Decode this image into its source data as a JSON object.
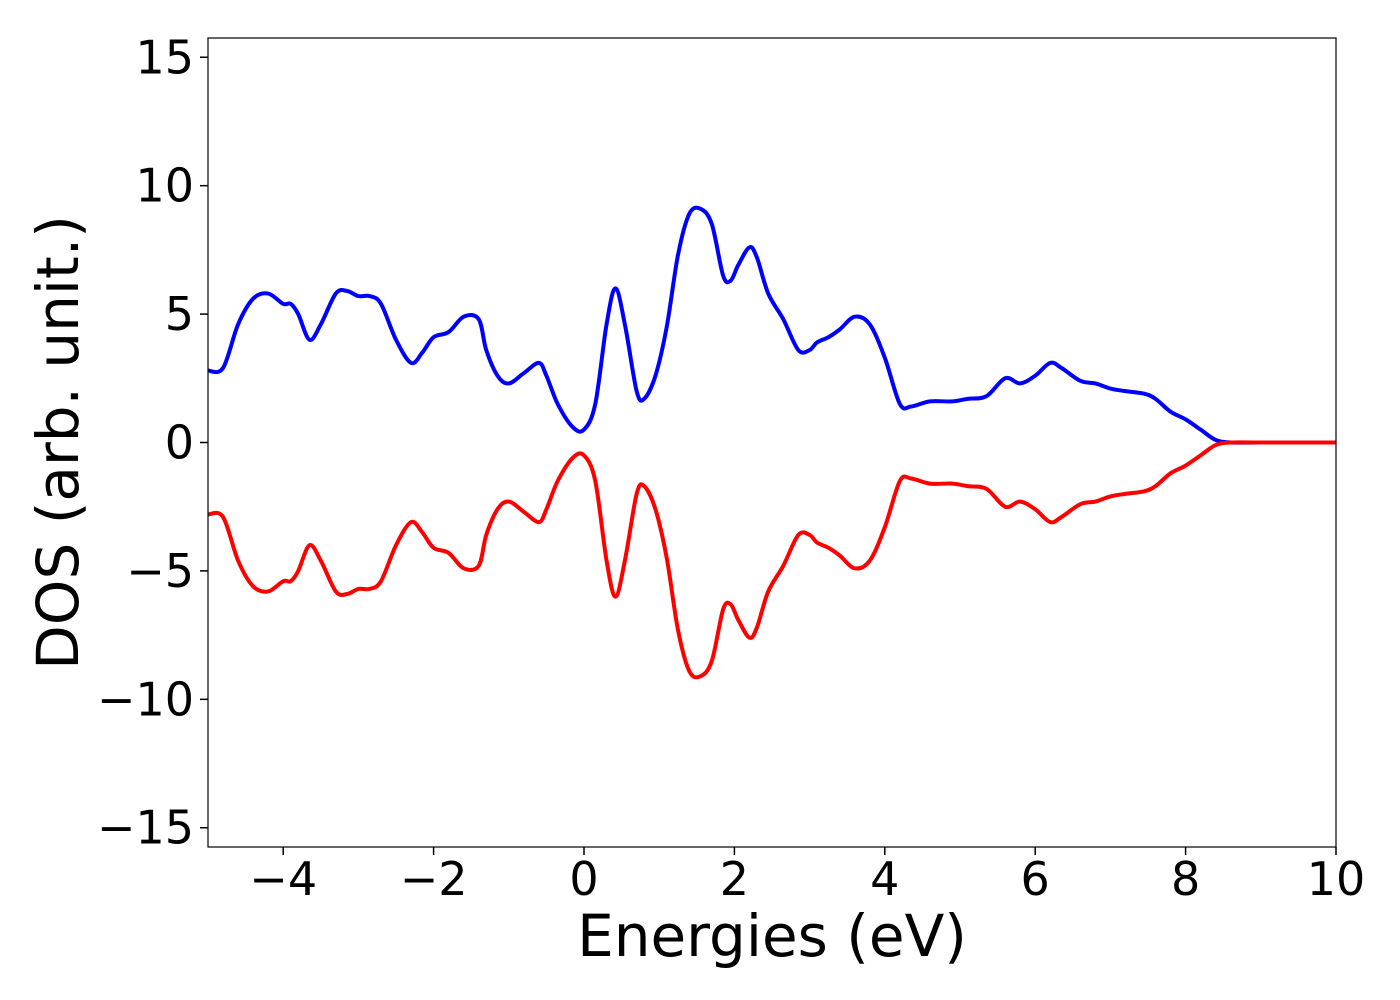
{
  "chart_data": {
    "type": "line",
    "title": "",
    "xlabel": "Energies (eV)",
    "ylabel": "DOS (arb. unit.)",
    "xlim": [
      -5,
      10
    ],
    "ylim": [
      -15.75,
      15.75
    ],
    "xticks": [
      -4,
      -2,
      0,
      2,
      4,
      6,
      8,
      10
    ],
    "xtick_labels": [
      "−4",
      "−2",
      "0",
      "2",
      "4",
      "6",
      "8",
      "10"
    ],
    "yticks": [
      15,
      10,
      5,
      0,
      -5,
      -10,
      -15
    ],
    "ytick_labels": [
      "15",
      "10",
      "5",
      "0",
      "−5",
      "−10",
      "−15"
    ],
    "grid": false,
    "legend": "none",
    "series": [
      {
        "color": "#0000ff",
        "x": [
          -5.0,
          -4.8,
          -4.6,
          -4.4,
          -4.2,
          -4.0,
          -3.9,
          -3.8,
          -3.65,
          -3.5,
          -3.3,
          -3.15,
          -3.0,
          -2.85,
          -2.7,
          -2.5,
          -2.3,
          -2.15,
          -2.0,
          -1.8,
          -1.6,
          -1.4,
          -1.3,
          -1.15,
          -1.0,
          -0.8,
          -0.6,
          -0.5,
          -0.35,
          -0.15,
          0.0,
          0.15,
          0.3,
          0.42,
          0.55,
          0.7,
          0.8,
          0.95,
          1.1,
          1.25,
          1.4,
          1.55,
          1.7,
          1.85,
          1.95,
          2.05,
          2.2,
          2.3,
          2.45,
          2.65,
          2.85,
          3.0,
          3.1,
          3.25,
          3.4,
          3.6,
          3.8,
          4.0,
          4.2,
          4.35,
          4.6,
          4.9,
          5.1,
          5.35,
          5.6,
          5.8,
          6.0,
          6.2,
          6.35,
          6.6,
          6.8,
          7.0,
          7.2,
          7.45,
          7.6,
          7.8,
          8.0,
          8.2,
          8.4,
          8.6,
          9.0,
          10.0
        ],
        "values": [
          2.8,
          2.9,
          4.6,
          5.6,
          5.8,
          5.4,
          5.4,
          5.0,
          4.0,
          4.6,
          5.8,
          5.9,
          5.7,
          5.7,
          5.4,
          4.0,
          3.1,
          3.5,
          4.1,
          4.3,
          4.9,
          4.8,
          3.6,
          2.6,
          2.3,
          2.7,
          3.1,
          2.6,
          1.5,
          0.6,
          0.5,
          1.5,
          4.6,
          6.0,
          4.5,
          2.0,
          1.7,
          2.6,
          4.5,
          7.3,
          8.9,
          9.1,
          8.5,
          6.5,
          6.3,
          6.9,
          7.6,
          7.2,
          5.8,
          4.8,
          3.6,
          3.6,
          3.9,
          4.1,
          4.4,
          4.9,
          4.6,
          3.3,
          1.5,
          1.4,
          1.6,
          1.6,
          1.7,
          1.8,
          2.5,
          2.3,
          2.6,
          3.1,
          2.9,
          2.4,
          2.3,
          2.1,
          2.0,
          1.9,
          1.7,
          1.2,
          0.9,
          0.5,
          0.1,
          0.0,
          0.0,
          0.0
        ]
      },
      {
        "color": "#ff0000",
        "x": [
          -5.0,
          -4.8,
          -4.6,
          -4.4,
          -4.2,
          -4.0,
          -3.9,
          -3.8,
          -3.65,
          -3.5,
          -3.3,
          -3.15,
          -3.0,
          -2.85,
          -2.7,
          -2.5,
          -2.3,
          -2.15,
          -2.0,
          -1.8,
          -1.6,
          -1.4,
          -1.3,
          -1.15,
          -1.0,
          -0.8,
          -0.6,
          -0.5,
          -0.35,
          -0.15,
          0.0,
          0.15,
          0.3,
          0.42,
          0.55,
          0.7,
          0.8,
          0.95,
          1.1,
          1.25,
          1.4,
          1.55,
          1.7,
          1.85,
          1.95,
          2.05,
          2.2,
          2.3,
          2.45,
          2.65,
          2.85,
          3.0,
          3.1,
          3.25,
          3.4,
          3.6,
          3.8,
          4.0,
          4.2,
          4.35,
          4.6,
          4.9,
          5.1,
          5.35,
          5.6,
          5.8,
          6.0,
          6.2,
          6.35,
          6.6,
          6.8,
          7.0,
          7.2,
          7.45,
          7.6,
          7.8,
          8.0,
          8.2,
          8.4,
          8.6,
          9.0,
          10.0
        ],
        "values": [
          -2.8,
          -2.9,
          -4.6,
          -5.6,
          -5.8,
          -5.4,
          -5.4,
          -5.0,
          -4.0,
          -4.6,
          -5.8,
          -5.9,
          -5.7,
          -5.7,
          -5.4,
          -4.0,
          -3.1,
          -3.5,
          -4.1,
          -4.3,
          -4.9,
          -4.8,
          -3.6,
          -2.6,
          -2.3,
          -2.7,
          -3.1,
          -2.6,
          -1.5,
          -0.6,
          -0.5,
          -1.5,
          -4.6,
          -6.0,
          -4.5,
          -2.0,
          -1.7,
          -2.6,
          -4.5,
          -7.3,
          -8.9,
          -9.1,
          -8.5,
          -6.5,
          -6.3,
          -6.9,
          -7.6,
          -7.2,
          -5.8,
          -4.8,
          -3.6,
          -3.6,
          -3.9,
          -4.1,
          -4.4,
          -4.9,
          -4.6,
          -3.3,
          -1.5,
          -1.4,
          -1.6,
          -1.6,
          -1.7,
          -1.8,
          -2.5,
          -2.3,
          -2.6,
          -3.1,
          -2.9,
          -2.4,
          -2.3,
          -2.1,
          -2.0,
          -1.9,
          -1.7,
          -1.2,
          -0.9,
          -0.5,
          -0.1,
          0.0,
          0.0,
          0.0
        ]
      }
    ]
  }
}
